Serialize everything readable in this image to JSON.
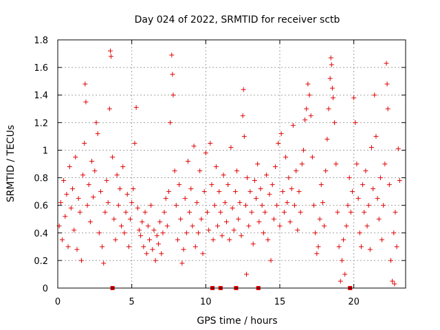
{
  "chart_data": {
    "type": "scatter",
    "title": "Day 024 of 2022, SRMTID for receiver sctb",
    "xlabel": "GPS time / hours",
    "ylabel": "SRMTID / TECUs",
    "xlim": [
      0,
      23.5
    ],
    "ylim": [
      0,
      1.8
    ],
    "xticks": [
      0,
      5,
      10,
      15,
      20
    ],
    "xtick_labels": [
      "0",
      "5",
      "10",
      "15",
      "20"
    ],
    "yticks": [
      0,
      0.2,
      0.4,
      0.6,
      0.8,
      1,
      1.2,
      1.4,
      1.6,
      1.8
    ],
    "ytick_labels": [
      "0",
      "0.2",
      "0.4",
      "0.6",
      "0.8",
      "1",
      "1.2",
      "1.4",
      "1.6",
      "1.8"
    ],
    "grid": true,
    "marker": "plus",
    "color": "#e00000",
    "baseline_markers_x": [
      3.7,
      10.45,
      11.0,
      12.05,
      13.55,
      19.75
    ],
    "series": [
      {
        "name": "SRMTID",
        "points": [
          [
            0.1,
            0.45
          ],
          [
            0.2,
            0.62
          ],
          [
            0.3,
            0.35
          ],
          [
            0.4,
            0.78
          ],
          [
            0.5,
            0.52
          ],
          [
            0.6,
            0.68
          ],
          [
            0.7,
            0.3
          ],
          [
            0.8,
            0.88
          ],
          [
            0.9,
            0.58
          ],
          [
            1.0,
            0.72
          ],
          [
            1.1,
            0.42
          ],
          [
            1.2,
            0.95
          ],
          [
            1.3,
            0.28
          ],
          [
            1.4,
            0.65
          ],
          [
            1.5,
            0.55
          ],
          [
            1.6,
            0.2
          ],
          [
            1.7,
            0.82
          ],
          [
            1.8,
            1.05
          ],
          [
            1.85,
            1.48
          ],
          [
            1.9,
            1.35
          ],
          [
            2.0,
            0.6
          ],
          [
            2.1,
            0.75
          ],
          [
            2.2,
            0.48
          ],
          [
            2.3,
            0.92
          ],
          [
            2.4,
            0.66
          ],
          [
            2.5,
            0.85
          ],
          [
            2.6,
            1.2
          ],
          [
            2.7,
            1.12
          ],
          [
            2.8,
            0.4
          ],
          [
            2.9,
            0.7
          ],
          [
            3.0,
            0.3
          ],
          [
            3.1,
            0.18
          ],
          [
            3.2,
            0.55
          ],
          [
            3.3,
            0.78
          ],
          [
            3.4,
            0.62
          ],
          [
            3.5,
            1.3
          ],
          [
            3.55,
            1.72
          ],
          [
            3.6,
            1.68
          ],
          [
            3.7,
            0.95
          ],
          [
            3.8,
            0.5
          ],
          [
            3.9,
            0.35
          ],
          [
            4.0,
            0.82
          ],
          [
            4.1,
            0.6
          ],
          [
            4.2,
            0.72
          ],
          [
            4.3,
            0.45
          ],
          [
            4.4,
            0.88
          ],
          [
            4.5,
            0.4
          ],
          [
            4.6,
            0.55
          ],
          [
            4.7,
            0.68
          ],
          [
            4.8,
            0.3
          ],
          [
            4.9,
            0.5
          ],
          [
            5.0,
            0.62
          ],
          [
            5.1,
            0.72
          ],
          [
            5.2,
            1.05
          ],
          [
            5.3,
            1.31
          ],
          [
            5.4,
            0.58
          ],
          [
            5.5,
            0.42
          ],
          [
            5.6,
            0.38
          ],
          [
            5.7,
            0.48
          ],
          [
            5.8,
            0.3
          ],
          [
            5.9,
            0.55
          ],
          [
            6.0,
            0.25
          ],
          [
            6.1,
            0.45
          ],
          [
            6.2,
            0.35
          ],
          [
            6.3,
            0.6
          ],
          [
            6.4,
            0.28
          ],
          [
            6.5,
            0.42
          ],
          [
            6.6,
            0.2
          ],
          [
            6.7,
            0.38
          ],
          [
            6.8,
            0.32
          ],
          [
            6.9,
            0.48
          ],
          [
            7.0,
            0.25
          ],
          [
            7.1,
            0.4
          ],
          [
            7.2,
            0.55
          ],
          [
            7.3,
            0.65
          ],
          [
            7.4,
            0.45
          ],
          [
            7.5,
            0.7
          ],
          [
            7.6,
            1.2
          ],
          [
            7.7,
            1.69
          ],
          [
            7.75,
            1.55
          ],
          [
            7.8,
            1.4
          ],
          [
            7.9,
            0.85
          ],
          [
            8.0,
            0.6
          ],
          [
            8.1,
            0.35
          ],
          [
            8.2,
            0.75
          ],
          [
            8.3,
            0.5
          ],
          [
            8.4,
            0.18
          ],
          [
            8.5,
            0.28
          ],
          [
            8.6,
            0.65
          ],
          [
            8.7,
            0.4
          ],
          [
            8.8,
            0.92
          ],
          [
            8.9,
            0.55
          ],
          [
            9.0,
            0.72
          ],
          [
            9.1,
            0.45
          ],
          [
            9.2,
            1.03
          ],
          [
            9.3,
            0.3
          ],
          [
            9.4,
            0.62
          ],
          [
            9.5,
            0.4
          ],
          [
            9.6,
            0.85
          ],
          [
            9.7,
            0.5
          ],
          [
            9.8,
            0.25
          ],
          [
            9.9,
            0.7
          ],
          [
            10.0,
            0.98
          ],
          [
            10.1,
            0.55
          ],
          [
            10.2,
            0.42
          ],
          [
            10.3,
            1.05
          ],
          [
            10.4,
            0.75
          ],
          [
            10.5,
            0.35
          ],
          [
            10.6,
            0.6
          ],
          [
            10.7,
            0.88
          ],
          [
            10.8,
            0.45
          ],
          [
            10.9,
            0.7
          ],
          [
            11.0,
            0.55
          ],
          [
            11.1,
            0.38
          ],
          [
            11.2,
            0.82
          ],
          [
            11.3,
            0.62
          ],
          [
            11.4,
            0.48
          ],
          [
            11.5,
            0.75
          ],
          [
            11.6,
            0.35
          ],
          [
            11.7,
            1.02
          ],
          [
            11.8,
            0.58
          ],
          [
            11.9,
            0.42
          ],
          [
            12.0,
            0.7
          ],
          [
            12.1,
            0.85
          ],
          [
            12.2,
            0.5
          ],
          [
            12.3,
            0.62
          ],
          [
            12.4,
            0.38
          ],
          [
            12.5,
            1.25
          ],
          [
            12.55,
            1.44
          ],
          [
            12.6,
            1.1
          ],
          [
            12.7,
            0.6
          ],
          [
            12.75,
            0.1
          ],
          [
            12.8,
            0.8
          ],
          [
            12.9,
            0.45
          ],
          [
            13.0,
            0.7
          ],
          [
            13.1,
            0.55
          ],
          [
            13.2,
            0.32
          ],
          [
            13.3,
            0.78
          ],
          [
            13.4,
            0.65
          ],
          [
            13.5,
            0.9
          ],
          [
            13.6,
            0.48
          ],
          [
            13.7,
            0.72
          ],
          [
            13.8,
            0.6
          ],
          [
            13.9,
            0.4
          ],
          [
            14.0,
            0.55
          ],
          [
            14.1,
            0.82
          ],
          [
            14.2,
            0.35
          ],
          [
            14.3,
            0.68
          ],
          [
            14.4,
            0.2
          ],
          [
            14.5,
            0.75
          ],
          [
            14.6,
            0.5
          ],
          [
            14.7,
            0.88
          ],
          [
            14.8,
            0.6
          ],
          [
            14.9,
            1.05
          ],
          [
            15.0,
            0.45
          ],
          [
            15.1,
            1.12
          ],
          [
            15.2,
            0.7
          ],
          [
            15.3,
            0.55
          ],
          [
            15.4,
            0.95
          ],
          [
            15.5,
            0.62
          ],
          [
            15.6,
            0.8
          ],
          [
            15.7,
            0.48
          ],
          [
            15.8,
            0.72
          ],
          [
            15.9,
            1.18
          ],
          [
            16.0,
            0.6
          ],
          [
            16.1,
            0.85
          ],
          [
            16.2,
            0.42
          ],
          [
            16.3,
            0.7
          ],
          [
            16.4,
            0.55
          ],
          [
            16.5,
            0.9
          ],
          [
            16.6,
            1.0
          ],
          [
            16.7,
            1.22
          ],
          [
            16.8,
            1.3
          ],
          [
            16.9,
            1.48
          ],
          [
            17.0,
            1.4
          ],
          [
            17.1,
            1.25
          ],
          [
            17.2,
            0.95
          ],
          [
            17.3,
            0.6
          ],
          [
            17.4,
            0.4
          ],
          [
            17.5,
            0.25
          ],
          [
            17.6,
            0.3
          ],
          [
            17.7,
            0.5
          ],
          [
            17.8,
            0.75
          ],
          [
            17.9,
            0.62
          ],
          [
            18.0,
            0.45
          ],
          [
            18.1,
            0.85
          ],
          [
            18.2,
            1.08
          ],
          [
            18.3,
            1.3
          ],
          [
            18.4,
            1.52
          ],
          [
            18.45,
            1.67
          ],
          [
            18.5,
            1.62
          ],
          [
            18.55,
            1.45
          ],
          [
            18.6,
            1.38
          ],
          [
            18.7,
            1.2
          ],
          [
            18.8,
            0.9
          ],
          [
            18.9,
            0.55
          ],
          [
            19.0,
            0.3
          ],
          [
            19.1,
            0.05
          ],
          [
            19.2,
            0.2
          ],
          [
            19.3,
            0.35
          ],
          [
            19.4,
            0.1
          ],
          [
            19.5,
            0.45
          ],
          [
            19.6,
            0.6
          ],
          [
            19.7,
            0.8
          ],
          [
            19.8,
            0.55
          ],
          [
            19.9,
            0.7
          ],
          [
            20.0,
            1.38
          ],
          [
            20.1,
            1.2
          ],
          [
            20.2,
            0.9
          ],
          [
            20.3,
            0.65
          ],
          [
            20.4,
            0.4
          ],
          [
            20.5,
            0.3
          ],
          [
            20.6,
            0.75
          ],
          [
            20.7,
            0.55
          ],
          [
            20.8,
            0.85
          ],
          [
            20.9,
            0.45
          ],
          [
            21.0,
            0.6
          ],
          [
            21.1,
            0.28
          ],
          [
            21.2,
            1.02
          ],
          [
            21.3,
            0.72
          ],
          [
            21.4,
            1.4
          ],
          [
            21.5,
            1.1
          ],
          [
            21.6,
            0.65
          ],
          [
            21.7,
            0.5
          ],
          [
            21.8,
            0.8
          ],
          [
            21.9,
            0.35
          ],
          [
            22.0,
            0.6
          ],
          [
            22.1,
            0.9
          ],
          [
            22.2,
            1.63
          ],
          [
            22.25,
            1.48
          ],
          [
            22.3,
            1.3
          ],
          [
            22.4,
            0.75
          ],
          [
            22.5,
            0.2
          ],
          [
            22.6,
            0.05
          ],
          [
            22.7,
            0.4
          ],
          [
            22.75,
            0.03
          ],
          [
            22.8,
            0.55
          ],
          [
            22.9,
            0.3
          ],
          [
            23.0,
            1.01
          ],
          [
            23.1,
            0.78
          ]
        ]
      }
    ]
  }
}
